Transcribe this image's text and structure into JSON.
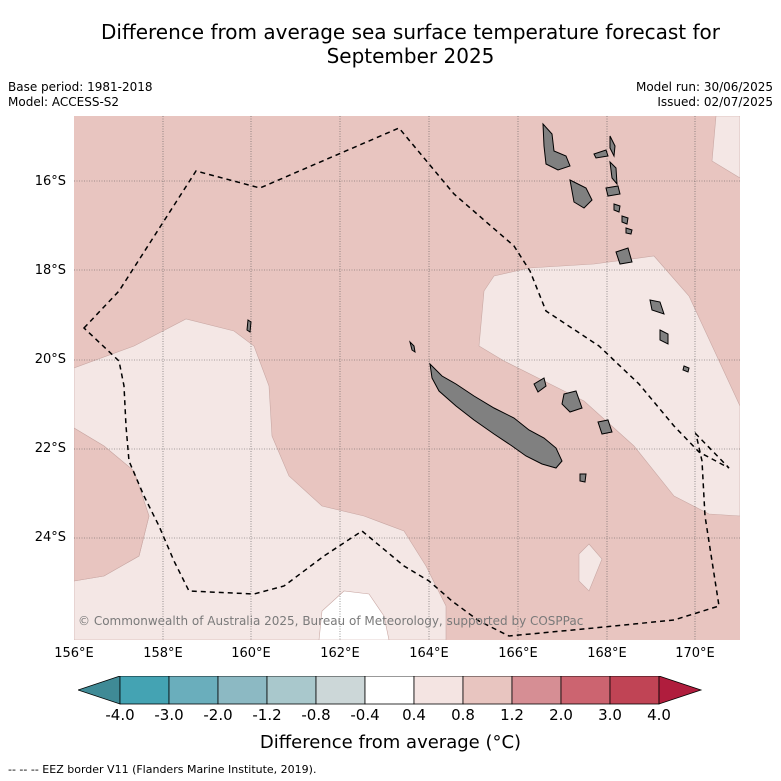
{
  "title_line1": "Difference from average sea surface temperature forecast for",
  "title_line2": "September 2025",
  "base_period": "Base period: 1981-2018",
  "model": "Model: ACCESS-S2",
  "model_run": "Model run: 30/06/2025",
  "issued": "Issued: 02/07/2025",
  "lat_ticks": [
    "16°S",
    "18°S",
    "20°S",
    "22°S",
    "24°S"
  ],
  "lon_ticks": [
    "156°E",
    "158°E",
    "160°E",
    "162°E",
    "164°E",
    "166°E",
    "168°E",
    "170°E"
  ],
  "map_extent": {
    "lon_min": 156,
    "lon_max": 171,
    "lat_min": -26.3,
    "lat_max": -14.5
  },
  "copyright": "© Commonwealth of Australia 2025, Bureau of Meteorology, supported by COSPPac",
  "colorbar": {
    "labels": [
      "-4.0",
      "-3.0",
      "-2.0",
      "-1.2",
      "-0.8",
      "-0.4",
      "0.4",
      "0.8",
      "1.2",
      "2.0",
      "3.0",
      "4.0"
    ],
    "colors": [
      "#3f8a96",
      "#44a3b3",
      "#6aaebc",
      "#8cb9c3",
      "#a9c8cc",
      "#ccd7d8",
      "#ffffff",
      "#f4e4e2",
      "#e8c5c0",
      "#d68e94",
      "#cc6470",
      "#c04455",
      "#b01d3d"
    ],
    "title": "Difference from average (°C)"
  },
  "footnote": "--  --  -- EEZ border V11 (Flanders Marine Institute, 2019)."
}
